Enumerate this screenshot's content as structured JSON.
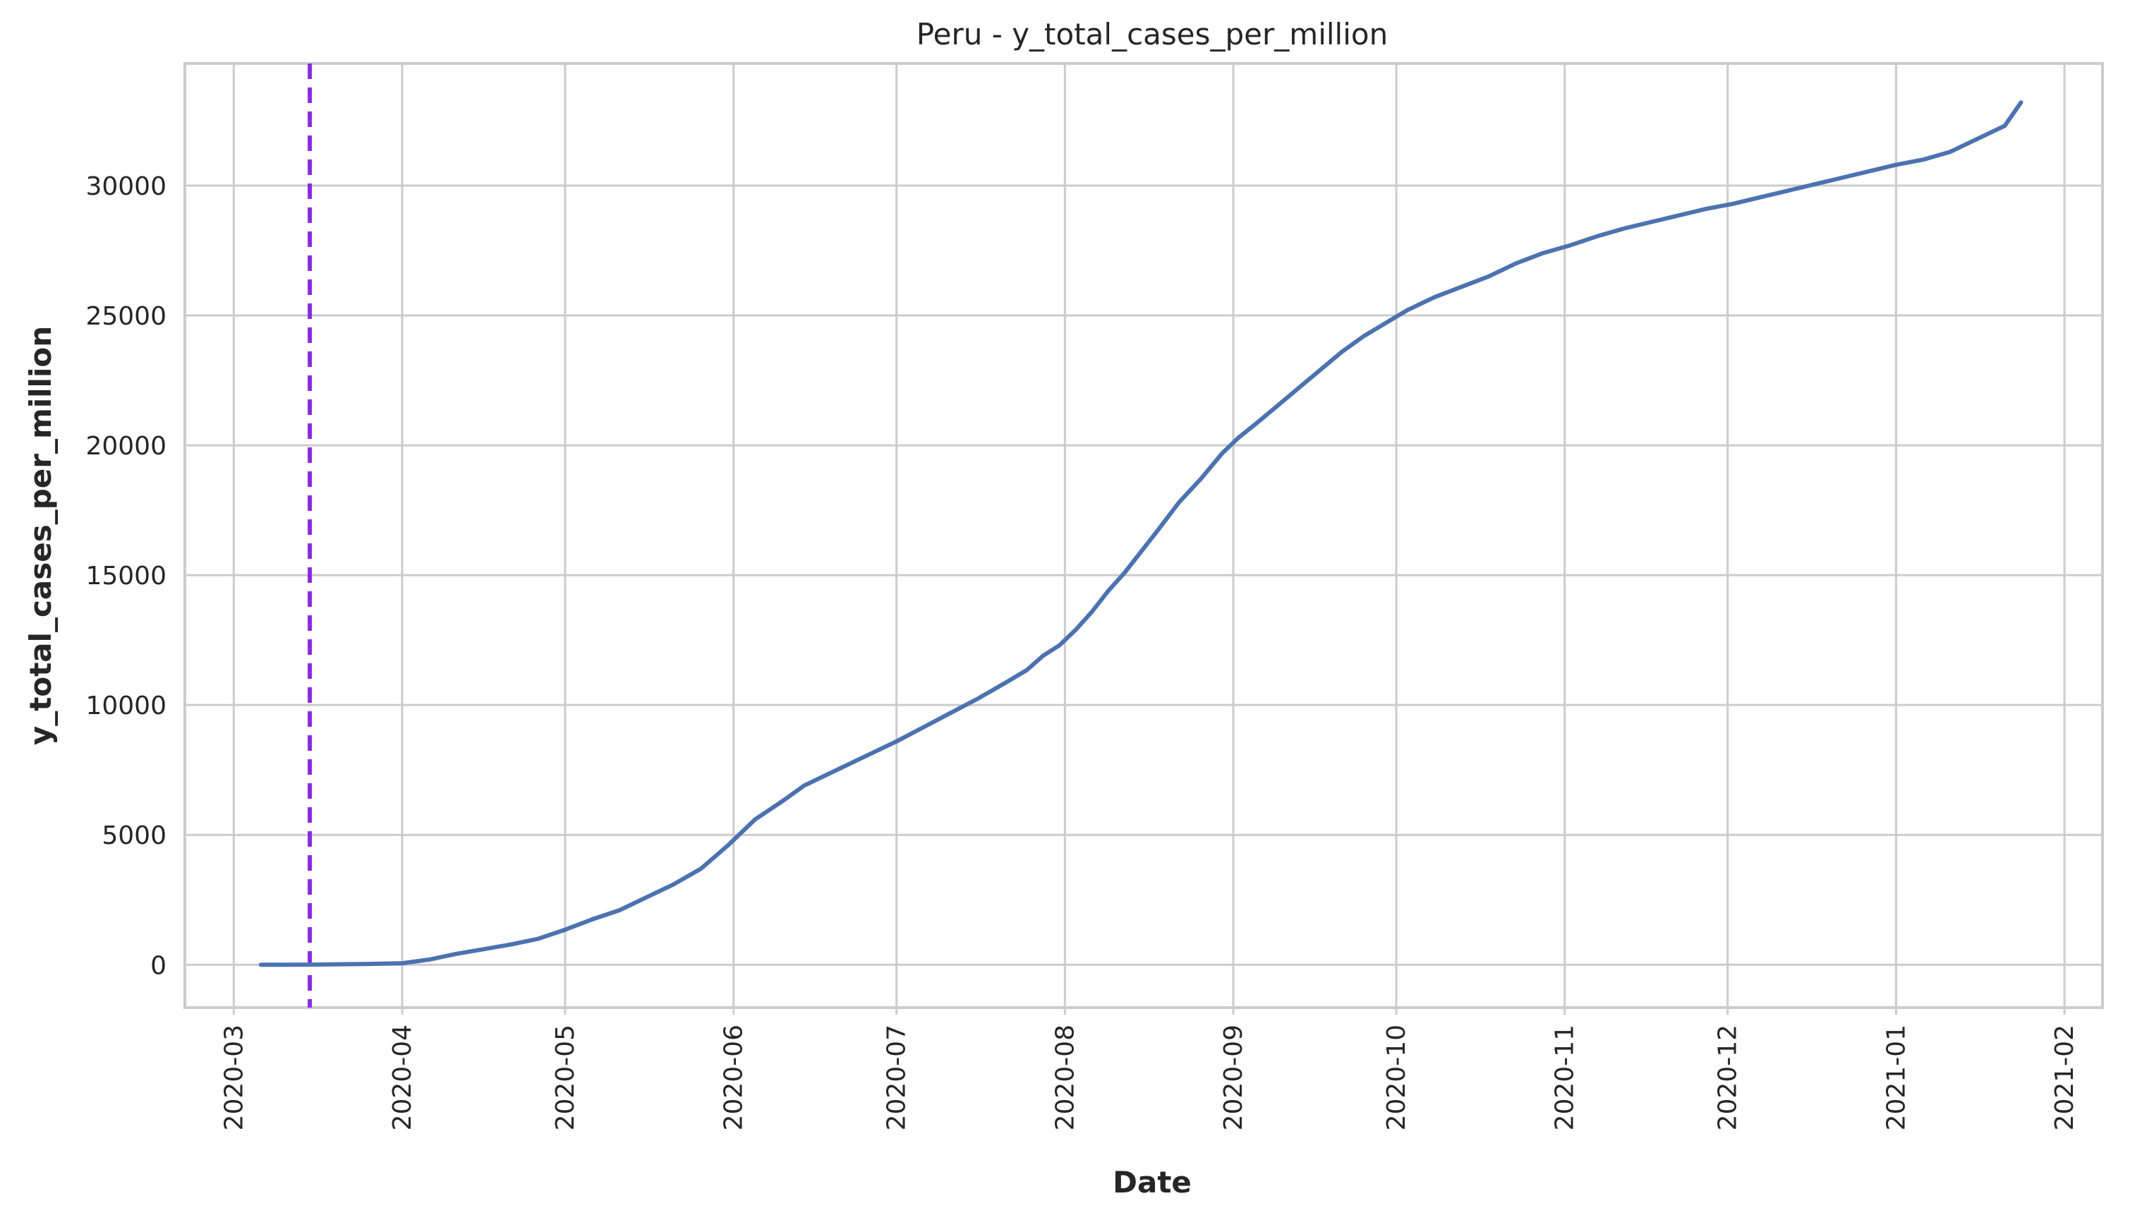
{
  "chart_data": {
    "type": "line",
    "title": "Peru - y_total_cases_per_million",
    "xlabel": "Date",
    "ylabel": "y_total_cases_per_million",
    "x_axis_type": "date",
    "xlim": [
      "2020-02-21",
      "2021-02-08"
    ],
    "ylim": [
      -1650,
      34700
    ],
    "x_ticks": [
      "2020-03",
      "2020-04",
      "2020-05",
      "2020-06",
      "2020-07",
      "2020-08",
      "2020-09",
      "2020-10",
      "2020-11",
      "2020-12",
      "2021-01",
      "2021-02"
    ],
    "y_ticks": [
      0,
      5000,
      10000,
      15000,
      20000,
      25000,
      30000
    ],
    "grid": true,
    "legend": "none",
    "vertical_line": {
      "x": "2020-03-15",
      "color": "#8a2be2",
      "style": "dashed"
    },
    "series": [
      {
        "color": "#4c72b0",
        "x": [
          "2020-03-06",
          "2020-03-15",
          "2020-03-25",
          "2020-04-01",
          "2020-04-06",
          "2020-04-11",
          "2020-04-16",
          "2020-04-21",
          "2020-04-26",
          "2020-05-01",
          "2020-05-06",
          "2020-05-11",
          "2020-05-16",
          "2020-05-21",
          "2020-05-26",
          "2020-05-31",
          "2020-06-05",
          "2020-06-10",
          "2020-06-14",
          "2020-06-21",
          "2020-06-26",
          "2020-07-01",
          "2020-07-06",
          "2020-07-11",
          "2020-07-16",
          "2020-07-21",
          "2020-07-25",
          "2020-07-28",
          "2020-07-31",
          "2020-08-03",
          "2020-08-06",
          "2020-08-09",
          "2020-08-12",
          "2020-08-15",
          "2020-08-18",
          "2020-08-22",
          "2020-08-26",
          "2020-08-30",
          "2020-09-02",
          "2020-09-05",
          "2020-09-09",
          "2020-09-13",
          "2020-09-17",
          "2020-09-21",
          "2020-09-25",
          "2020-09-29",
          "2020-10-03",
          "2020-10-08",
          "2020-10-13",
          "2020-10-18",
          "2020-10-23",
          "2020-10-28",
          "2020-11-02",
          "2020-11-07",
          "2020-11-12",
          "2020-11-17",
          "2020-11-22",
          "2020-11-27",
          "2020-12-02",
          "2020-12-07",
          "2020-12-12",
          "2020-12-17",
          "2020-12-22",
          "2020-12-27",
          "2021-01-01",
          "2021-01-06",
          "2021-01-11",
          "2021-01-16",
          "2021-01-21",
          "2021-01-24"
        ],
        "values": [
          0,
          5,
          30,
          60,
          200,
          420,
          600,
          780,
          1000,
          1350,
          1750,
          2100,
          2600,
          3100,
          3700,
          4600,
          5600,
          6300,
          6900,
          7600,
          8100,
          8600,
          9150,
          9700,
          10250,
          10850,
          11350,
          11900,
          12300,
          12900,
          13600,
          14400,
          15100,
          15900,
          16700,
          17800,
          18700,
          19700,
          20300,
          20800,
          21500,
          22200,
          22900,
          23600,
          24200,
          24700,
          25200,
          25700,
          26100,
          26500,
          27000,
          27400,
          27700,
          28050,
          28350,
          28600,
          28850,
          29100,
          29300,
          29550,
          29800,
          30050,
          30300,
          30550,
          30800,
          31000,
          31300,
          31800,
          32300,
          33200
        ]
      }
    ]
  }
}
